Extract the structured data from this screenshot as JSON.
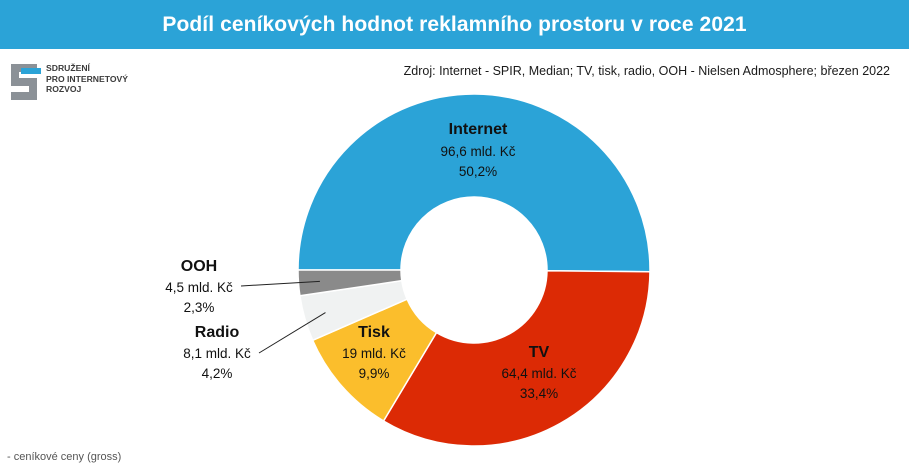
{
  "header": {
    "title": "Podíl ceníkových hodnot reklamního prostoru v roce 2021"
  },
  "logo": {
    "text": "Sdružení\npro internetový\nrozvoj"
  },
  "source": "Zdroj: Internet - SPIR, Median; TV, tisk, radio, OOH - Nielsen Admosphere;  březen 2022",
  "footnote": "- ceníkové ceny (gross)",
  "chart_data": {
    "type": "pie",
    "title": "Podíl ceníkových hodnot reklamního prostoru v roce 2021",
    "donut": true,
    "categories": [
      "Internet",
      "TV",
      "Tisk",
      "Radio",
      "OOH"
    ],
    "values": [
      96.6,
      64.4,
      19,
      8.1,
      4.5
    ],
    "value_labels": [
      "96,6 mld. Kč",
      "64,4 mld. Kč",
      "19 mld. Kč",
      "8,1 mld. Kč",
      "4,5 mld. Kč"
    ],
    "percent_labels": [
      "50,2%",
      "33,4%",
      "9,9%",
      "4,2%",
      "2,3%"
    ],
    "colors": [
      "#2ba3d7",
      "#dc2a05",
      "#fbbe2c",
      "#f0f2f2",
      "#8a8a8a"
    ]
  }
}
